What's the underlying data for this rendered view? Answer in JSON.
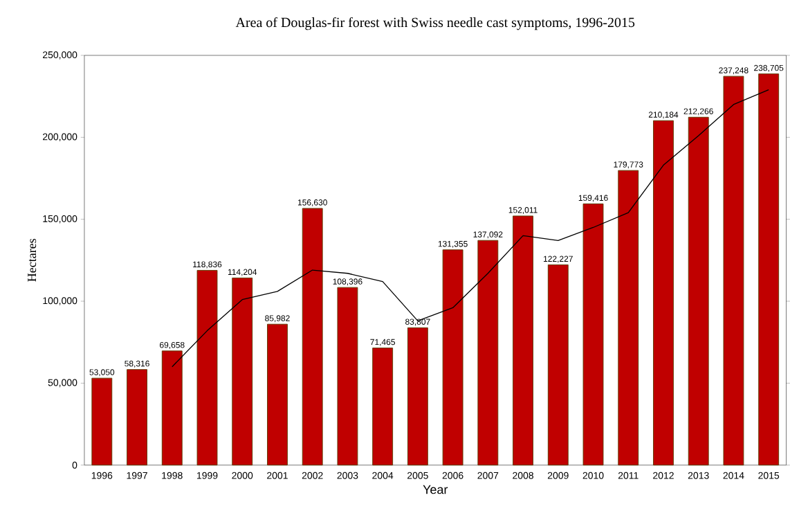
{
  "chart_data": {
    "type": "bar",
    "title": "Area of Douglas-fir forest with Swiss needle cast symptoms, 1996-2015",
    "xlabel": "Year",
    "ylabel": "Hectares",
    "categories": [
      "1996",
      "1997",
      "1998",
      "1999",
      "2000",
      "2001",
      "2002",
      "2003",
      "2004",
      "2005",
      "2006",
      "2007",
      "2008",
      "2009",
      "2010",
      "2011",
      "2012",
      "2013",
      "2014",
      "2015"
    ],
    "series": [
      {
        "color": "#c00000",
        "values": [
          53050,
          58316,
          69658,
          118836,
          114204,
          85982,
          156630,
          108396,
          71465,
          83807,
          131355,
          137092,
          152011,
          122227,
          159416,
          179773,
          210184,
          212266,
          237248,
          238705
        ],
        "value_labels": [
          "53,050",
          "58,316",
          "69,658",
          "118,836",
          "114,204",
          "85,982",
          "156,630",
          "108,396",
          "71,465",
          "83,807",
          "131,355",
          "137,092",
          "152,011",
          "122,227",
          "159,416",
          "179,773",
          "210,184",
          "212,266",
          "237,248",
          "238,705"
        ]
      },
      {
        "type": "line",
        "color": "#000000",
        "values": [
          null,
          null,
          60000,
          82000,
          101000,
          106000,
          119000,
          117000,
          112000,
          88000,
          96000,
          117000,
          140000,
          137000,
          145000,
          154000,
          183000,
          201000,
          220000,
          229000
        ]
      }
    ],
    "ylim": [
      0,
      250000
    ],
    "yticks": [
      0,
      {
        "value": 50000,
        "label": "50,000"
      },
      {
        "value": 100000,
        "label": "100,000"
      },
      {
        "value": 150000,
        "label": "150,000"
      },
      {
        "value": 200000,
        "label": "200,000"
      },
      {
        "value": 250000,
        "label": "250,000"
      }
    ],
    "grid": false,
    "marker": "none",
    "line_style": "solid"
  }
}
